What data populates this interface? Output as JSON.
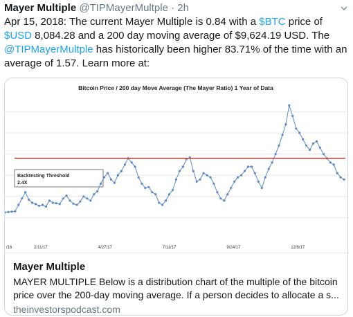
{
  "tweet": {
    "display_name": "Mayer Multiple",
    "handle": "@TIPMayerMultple",
    "separator": "·",
    "time": "2h",
    "text_parts": [
      {
        "t": "Apr 15, 2018: The current Mayer Multiple is 0.84 with a ",
        "link": false
      },
      {
        "t": "$BTC",
        "link": true
      },
      {
        "t": " price of ",
        "link": false
      },
      {
        "t": "$USD",
        "link": true
      },
      {
        "t": " 8,084.28 and a 200 day moving average of $9,624.19 USD. The ",
        "link": false
      },
      {
        "t": "@TIPMayerMultple",
        "link": true
      },
      {
        "t": " has historically been higher 83.71% of the time with an average of 1.57. Learn more at:",
        "link": false
      }
    ]
  },
  "card": {
    "title": "Mayer Multiple",
    "description": "MAYER MULTIPLE Below is a distribution chart of the multiple of the bitcoin price over the 200-day moving average. If a person decides to allocate a s...",
    "domain": "theinvestorspodcast.com"
  },
  "colors": {
    "link": "#1da1f2",
    "series": "#5b8ac6",
    "threshold": "#b5473c"
  },
  "chart_data": {
    "type": "line",
    "title": "Bitcoin Price / 200 day Move Average  (The Mayer Ratio)  1 Year of Data",
    "xlabel": "",
    "ylabel": "",
    "x_tick_labels": [
      "/16",
      "2/11/17",
      "4/27/17",
      "7/11/17",
      "9/24/17",
      "12/8/17"
    ],
    "x_ticks_days": [
      0,
      42,
      117,
      192,
      267,
      342
    ],
    "xlim_days": [
      0,
      400
    ],
    "ylim": [
      0.5,
      3.8
    ],
    "threshold": {
      "label_line1": "Backtesting Threshold",
      "label_line2": "2.4X",
      "value": 2.4
    },
    "grid": "horizontal",
    "series": [
      {
        "x": [
          0,
          4,
          8,
          12,
          16,
          20,
          24,
          28,
          32,
          36,
          40,
          44,
          48,
          52,
          56,
          60,
          64,
          68,
          72,
          76,
          80,
          84,
          88,
          92,
          96,
          100,
          104,
          108,
          112,
          116,
          120,
          124,
          128,
          132,
          136,
          140,
          144,
          148,
          152,
          156,
          160,
          164,
          168,
          172,
          176,
          180,
          184,
          188,
          192,
          196,
          200,
          204,
          208,
          212,
          216,
          220,
          224,
          228,
          232,
          236,
          240,
          244,
          248,
          252,
          256,
          260,
          264,
          268,
          272,
          276,
          280,
          284,
          288,
          292,
          296,
          300,
          304,
          308,
          312,
          316,
          320,
          324,
          328,
          332,
          336,
          340,
          344,
          348,
          352,
          356,
          360,
          364,
          368,
          372,
          376,
          380,
          384,
          388,
          392,
          396
        ],
        "values": [
          1.12,
          1.13,
          1.14,
          1.15,
          1.3,
          1.45,
          1.6,
          1.42,
          1.35,
          1.32,
          1.28,
          1.3,
          1.26,
          1.4,
          1.35,
          1.34,
          1.32,
          1.45,
          1.52,
          1.4,
          1.33,
          1.3,
          1.38,
          1.5,
          1.45,
          1.4,
          1.55,
          1.62,
          1.8,
          1.95,
          2.05,
          1.9,
          1.82,
          2.0,
          2.1,
          2.25,
          2.4,
          2.3,
          2.2,
          1.95,
          1.8,
          1.7,
          1.72,
          1.6,
          1.55,
          1.35,
          1.3,
          1.4,
          1.55,
          1.65,
          1.9,
          2.1,
          2.2,
          2.38,
          2.42,
          2.1,
          1.85,
          1.9,
          2.05,
          2.0,
          1.95,
          1.8,
          1.6,
          1.45,
          1.4,
          1.55,
          1.7,
          1.85,
          1.95,
          2.0,
          2.1,
          2.2,
          2.2,
          2.05,
          1.85,
          1.7,
          1.95,
          2.15,
          2.3,
          2.5,
          2.7,
          2.95,
          3.2,
          3.65,
          3.4,
          3.1,
          3.0,
          2.85,
          2.7,
          2.6,
          2.75,
          2.8,
          2.65,
          2.5,
          2.4,
          2.3,
          2.25,
          2.05,
          1.95,
          1.9
        ]
      }
    ]
  }
}
